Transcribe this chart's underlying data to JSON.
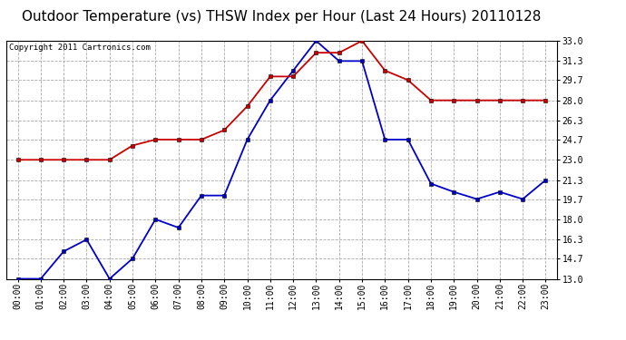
{
  "title": "Outdoor Temperature (vs) THSW Index per Hour (Last 24 Hours) 20110128",
  "copyright": "Copyright 2011 Cartronics.com",
  "hours": [
    "00:00",
    "01:00",
    "02:00",
    "03:00",
    "04:00",
    "05:00",
    "06:00",
    "07:00",
    "08:00",
    "09:00",
    "10:00",
    "11:00",
    "12:00",
    "13:00",
    "14:00",
    "15:00",
    "16:00",
    "17:00",
    "18:00",
    "19:00",
    "20:00",
    "21:00",
    "22:00",
    "23:00"
  ],
  "blue_temp": [
    13.0,
    13.0,
    15.3,
    16.3,
    13.0,
    14.7,
    18.0,
    17.3,
    20.0,
    20.0,
    24.7,
    28.0,
    30.5,
    33.0,
    31.3,
    31.3,
    24.7,
    24.7,
    21.0,
    20.3,
    19.7,
    20.3,
    19.7,
    21.3
  ],
  "red_thsw": [
    23.0,
    23.0,
    23.0,
    23.0,
    23.0,
    24.2,
    24.7,
    24.7,
    24.7,
    25.5,
    27.5,
    30.0,
    30.0,
    32.0,
    32.0,
    33.0,
    30.5,
    29.7,
    28.0,
    28.0,
    28.0,
    28.0,
    28.0,
    28.0
  ],
  "blue_color": "#0000cc",
  "red_color": "#cc0000",
  "bg_color": "#ffffff",
  "plot_bg": "#ffffff",
  "grid_color": "#aaaaaa",
  "ylim_min": 13.0,
  "ylim_max": 33.0,
  "yticks": [
    13.0,
    14.7,
    16.3,
    18.0,
    19.7,
    21.3,
    23.0,
    24.7,
    26.3,
    28.0,
    29.7,
    31.3,
    33.0
  ],
  "title_fontsize": 11,
  "tick_fontsize": 7,
  "copyright_fontsize": 6.5
}
